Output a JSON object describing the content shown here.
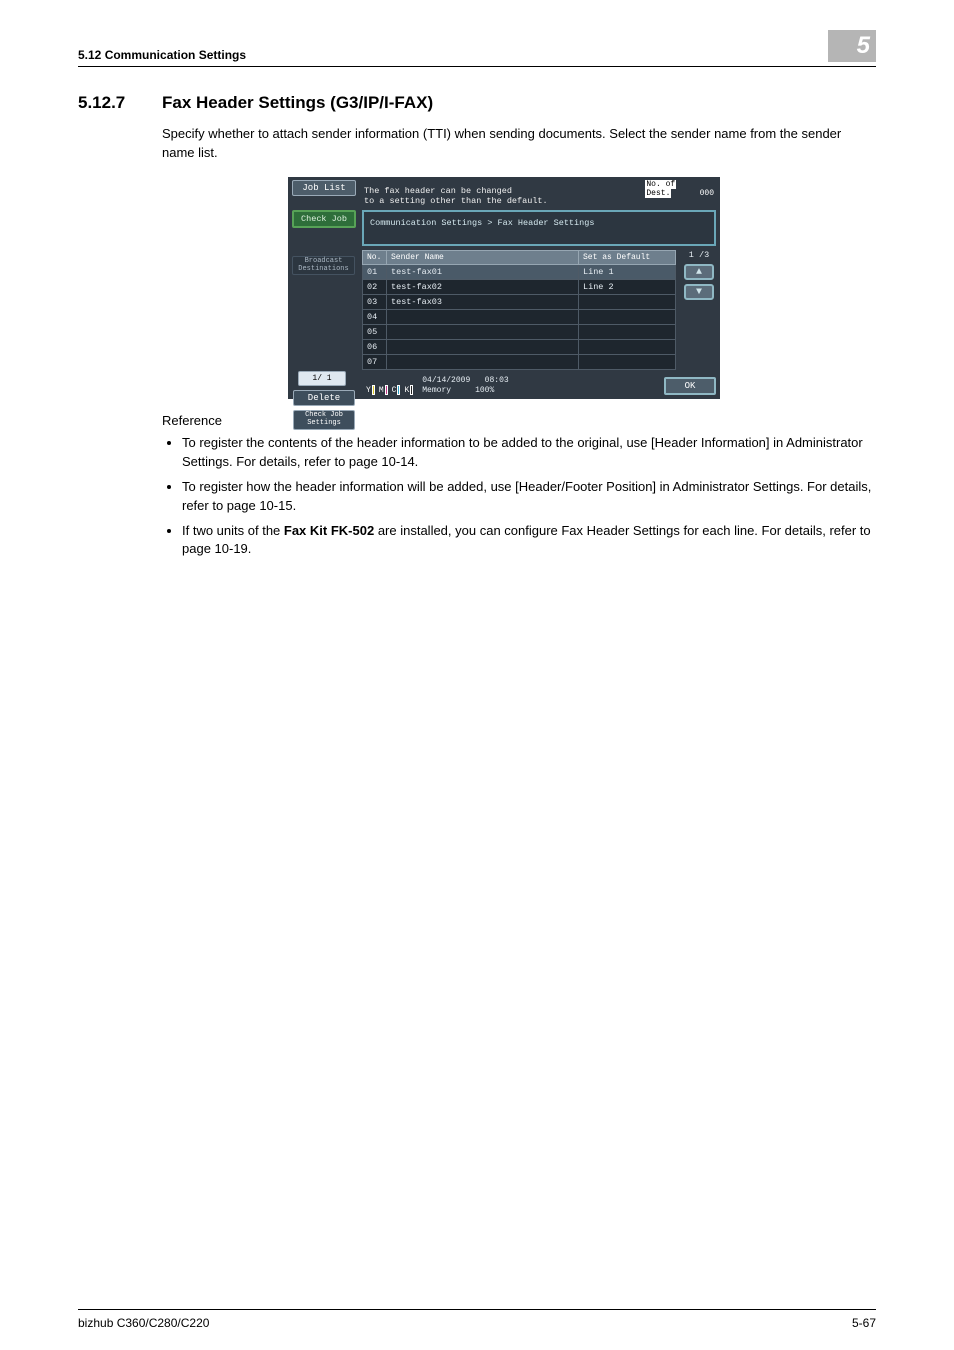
{
  "header": {
    "left": "5.12    Communication Settings",
    "chapter_num": "5"
  },
  "section": {
    "number": "5.12.7",
    "title": "Fax Header Settings (G3/IP/I-FAX)"
  },
  "intro": "Specify whether to attach sender information (TTI) when sending documents. Select the sender name from the sender name list.",
  "reference_label": "Reference",
  "references": [
    "To register the contents of the header information to be added to the original, use [Header Information] in Administrator Settings. For details, refer to page 10-14.",
    "To register how the header information will be added, use [Header/Footer Position] in Administrator Settings. For details, refer to page 10-15.",
    "If two units of the <b>Fax Kit FK-502</b> are installed, you can configure Fax Header Settings for each line. For details, refer to page 10-19."
  ],
  "footer": {
    "left": "bizhub C360/C280/C220",
    "right": "5-67"
  },
  "panel": {
    "job_list": "Job List",
    "check_job": "Check Job",
    "broadcast": "Broadcast Destinations",
    "pager_left": "1/  1",
    "delete": "Delete",
    "check_settings": "Check Job Settings",
    "dest_label_a": "No. of",
    "dest_label_b": "Dest.",
    "dest_value": "000",
    "msg_l1": "The fax header can be changed",
    "msg_l2": "to a setting other than the default.",
    "breadcrumb": "Communication Settings > Fax Header Settings",
    "columns": {
      "no": "No.",
      "name": "Sender Name",
      "def": "Set as Default"
    },
    "rows": [
      {
        "no": "01",
        "name": "test-fax01",
        "def": "Line 1",
        "selected": true
      },
      {
        "no": "02",
        "name": "test-fax02",
        "def": "Line 2"
      },
      {
        "no": "03",
        "name": "test-fax03",
        "def": ""
      },
      {
        "no": "04",
        "name": "",
        "def": ""
      },
      {
        "no": "05",
        "name": "",
        "def": ""
      },
      {
        "no": "06",
        "name": "",
        "def": ""
      },
      {
        "no": "07",
        "name": "",
        "def": ""
      }
    ],
    "page_indicator": "1 /3",
    "status_date": "04/14/2009",
    "status_time": "08:03",
    "status_mem_label": "Memory",
    "status_mem_val": "100%",
    "ok": "OK",
    "toner_labels": [
      "Y",
      "M",
      "C",
      "K"
    ],
    "colors": {
      "panel_bg": "#303943",
      "btn_bg": "#5b6c7a",
      "btn_border": "#9aaab8",
      "check_bg": "#2e6e3a",
      "crumb_border": "#6aa7b8",
      "row_bg": "#1e262e",
      "row_sel_bg": "#4a5a68",
      "head_bg": "#6e7f8d"
    }
  }
}
